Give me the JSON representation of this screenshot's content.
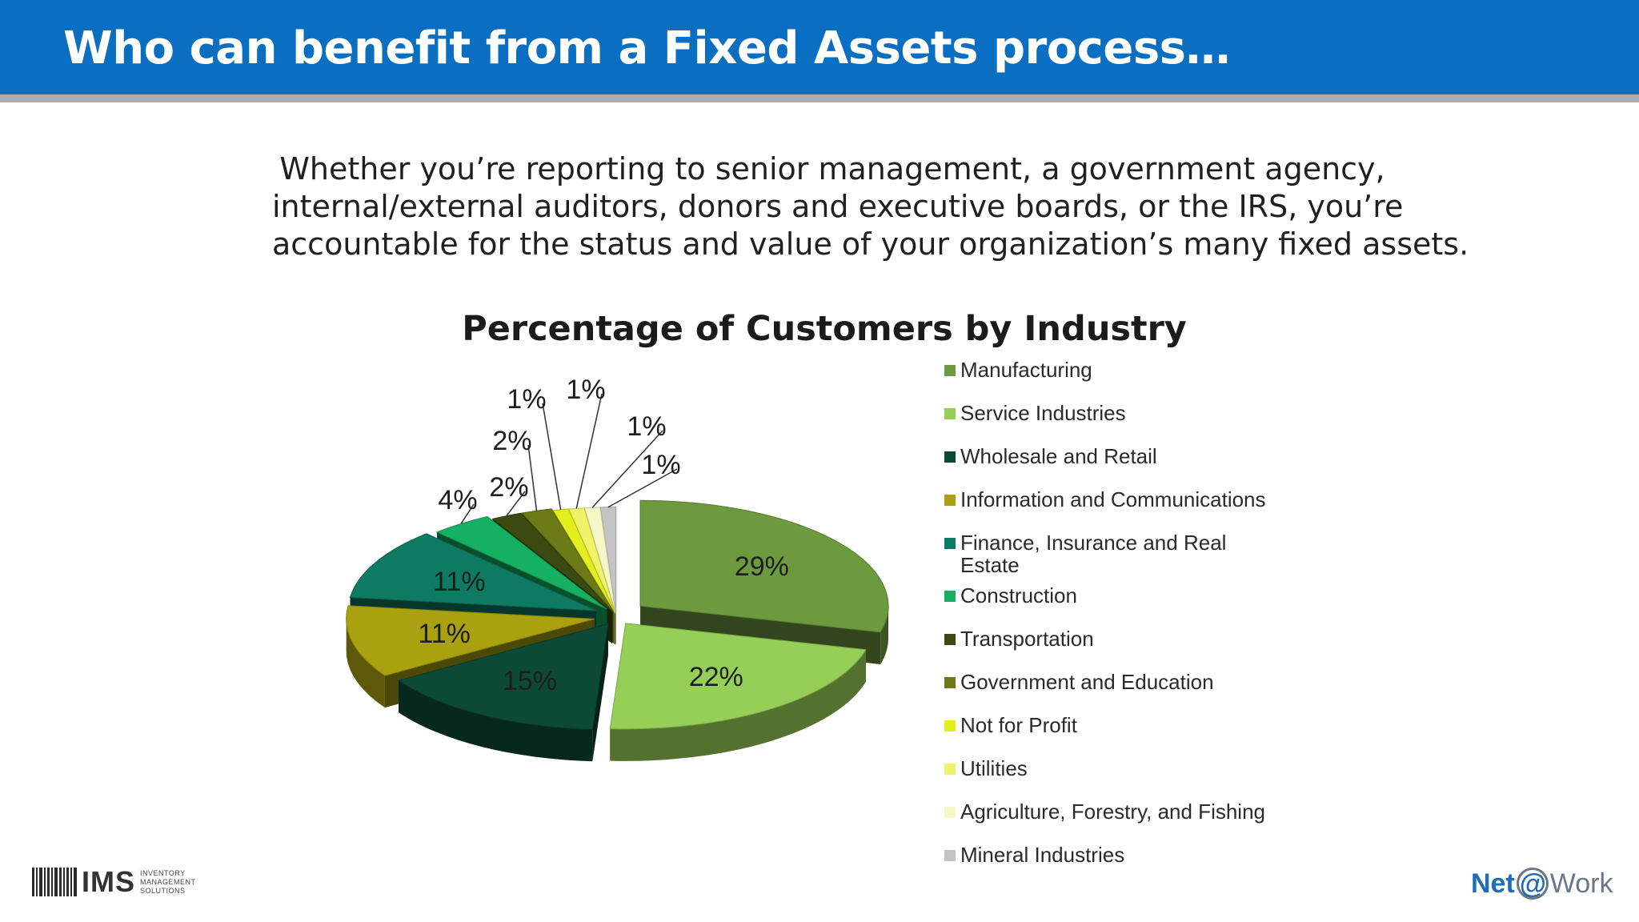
{
  "slide": {
    "title": "Who can benefit from a Fixed Assets process…",
    "intro_lines": [
      "Whether you’re reporting to senior management, a government agency,",
      "internal/external auditors, donors and executive boards, or the IRS, you’re",
      "accountable for the status and value of your organization’s many fixed assets."
    ]
  },
  "colors": {
    "header_bg": "#0b6fc1",
    "header_rule": "#a9acb0"
  },
  "chart_data": {
    "type": "pie",
    "title": "Percentage of Customers by Industry",
    "legend_position": "right",
    "exploded": true,
    "three_d": true,
    "series": [
      {
        "name": "Manufacturing",
        "value": 29,
        "label": "29%",
        "color": "#6e9a3f"
      },
      {
        "name": "Service Industries",
        "value": 22,
        "label": "22%",
        "color": "#96cf58"
      },
      {
        "name": "Wholesale and Retail",
        "value": 15,
        "label": "15%",
        "color": "#0d4a35"
      },
      {
        "name": "Information and Communications",
        "value": 11,
        "label": "11%",
        "color": "#a9a10f"
      },
      {
        "name": "Finance, Insurance and Real Estate",
        "value": 11,
        "label": "11%",
        "color": "#0f7a62"
      },
      {
        "name": "Construction",
        "value": 4,
        "label": "4%",
        "color": "#16b062"
      },
      {
        "name": "Transportation",
        "value": 2,
        "label": "2%",
        "color": "#3b4a10"
      },
      {
        "name": "Government and Education",
        "value": 2,
        "label": "2%",
        "color": "#6c7a16"
      },
      {
        "name": "Not for Profit",
        "value": 1,
        "label": "1%",
        "color": "#e4ee1e"
      },
      {
        "name": "Utilities",
        "value": 1,
        "label": "1%",
        "color": "#f0f36a"
      },
      {
        "name": "Agriculture, Forestry, and Fishing",
        "value": 1,
        "label": "1%",
        "color": "#f6f7c8"
      },
      {
        "name": "Mineral Industries",
        "value": 1,
        "label": "1%",
        "color": "#c4c4c4"
      }
    ]
  },
  "logos": {
    "ims_name": "IMS",
    "ims_sub": [
      "INVENTORY",
      "MANAGEMENT",
      "SOLUTIONS"
    ],
    "netwrk_net": "Net",
    "netwrk_at": "@",
    "netwrk_work": "Work"
  }
}
